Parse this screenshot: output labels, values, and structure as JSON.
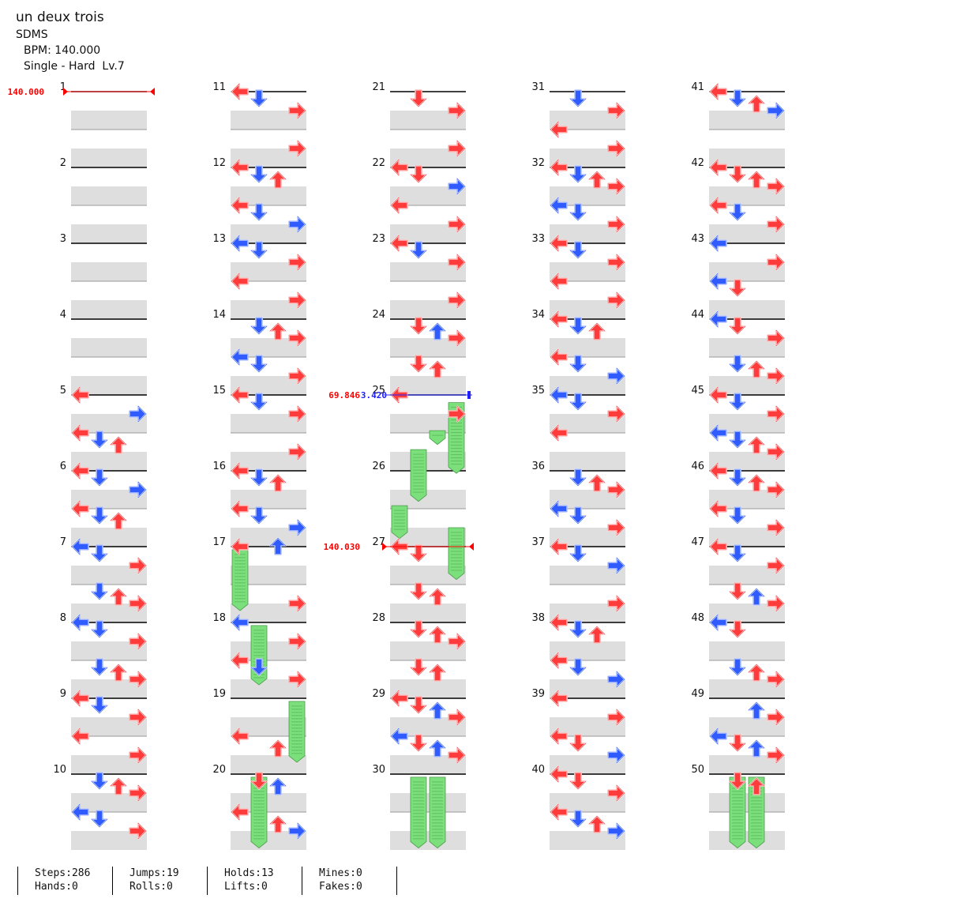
{
  "song": {
    "title": "un deux trois",
    "artist": "SDMS",
    "bpm_label": "BPM: 140.000",
    "difficulty_label": "Single - Hard  Lv.7"
  },
  "colors": {
    "red_arrow": "#ff3b3b",
    "blue_arrow": "#2f5bff",
    "hold": "#7be07b",
    "band": "#dedede",
    "bpm_red": "#ff0000",
    "bpm_blue": "#2020ff"
  },
  "measure_numbers": [
    "1",
    "2",
    "3",
    "4",
    "5",
    "6",
    "7",
    "8",
    "9",
    "10",
    "11",
    "12",
    "13",
    "14",
    "15",
    "16",
    "17",
    "18",
    "19",
    "20",
    "21",
    "22",
    "23",
    "24",
    "25",
    "26",
    "27",
    "28",
    "29",
    "30",
    "31",
    "32",
    "33",
    "34",
    "35",
    "36",
    "37",
    "38",
    "39",
    "40",
    "41",
    "42",
    "43",
    "44",
    "45",
    "46",
    "47",
    "48",
    "49",
    "50"
  ],
  "bpm_changes": [
    {
      "measure": 1,
      "label": "140.000",
      "color": "red"
    },
    {
      "measure": 25,
      "label": "69.846",
      "color": "red"
    },
    {
      "measure": 25,
      "label": "3.420",
      "color": "blue"
    },
    {
      "measure": 27,
      "label": "140.030",
      "color": "red"
    }
  ],
  "notes": [
    [
      5,
      0,
      0,
      "L",
      "r"
    ],
    [
      5,
      0,
      6,
      "R",
      "b"
    ],
    [
      5,
      1,
      0,
      "L",
      "r"
    ],
    [
      5,
      1,
      2,
      "D",
      "b"
    ],
    [
      5,
      1,
      4,
      "U",
      "r"
    ],
    [
      6,
      0,
      0,
      "L",
      "r"
    ],
    [
      6,
      0,
      2,
      "D",
      "b"
    ],
    [
      6,
      0,
      6,
      "R",
      "b"
    ],
    [
      6,
      0,
      0,
      "L",
      "r"
    ],
    [
      6,
      1,
      2,
      "D",
      "b"
    ],
    [
      6,
      1,
      4,
      "U",
      "r"
    ],
    [
      6,
      1,
      0,
      "L",
      "r"
    ],
    [
      7,
      0,
      2,
      "D",
      "b"
    ],
    [
      7,
      0,
      6,
      "R",
      "r"
    ],
    [
      7,
      0,
      0,
      "L",
      "b"
    ],
    [
      7,
      0,
      6,
      "R",
      "r"
    ],
    [
      7,
      1,
      2,
      "D",
      "b"
    ],
    [
      7,
      1,
      6,
      "R",
      "r"
    ],
    [
      7,
      1,
      4,
      "U",
      "r"
    ],
    [
      8,
      0,
      2,
      "D",
      "b"
    ],
    [
      8,
      0,
      6,
      "R",
      "r"
    ],
    [
      8,
      0,
      0,
      "L",
      "b"
    ],
    [
      8,
      0,
      6,
      "R",
      "r"
    ],
    [
      8,
      1,
      4,
      "U",
      "r"
    ],
    [
      8,
      1,
      2,
      "D",
      "b"
    ],
    [
      8,
      1,
      6,
      "R",
      "r"
    ],
    [
      9,
      0,
      0,
      "L",
      "r"
    ],
    [
      9,
      0,
      2,
      "D",
      "b"
    ],
    [
      9,
      0,
      6,
      "R",
      "r"
    ],
    [
      9,
      0,
      2,
      "D",
      "b"
    ],
    [
      9,
      1,
      6,
      "R",
      "r"
    ],
    [
      9,
      1,
      0,
      "L",
      "r"
    ],
    [
      10,
      0,
      2,
      "D",
      "r"
    ],
    [
      10,
      0,
      6,
      "R",
      "r"
    ],
    [
      10,
      0,
      4,
      "U",
      "r"
    ],
    [
      10,
      0,
      2,
      "D",
      "b"
    ],
    [
      10,
      1,
      6,
      "R",
      "r"
    ],
    [
      10,
      1,
      0,
      "L",
      "b"
    ],
    [
      10,
      1,
      6,
      "R",
      "r"
    ],
    [
      10,
      1,
      2,
      "D",
      "b"
    ],
    [
      10,
      1,
      6,
      "R",
      "r"
    ],
    [
      11,
      0,
      0,
      "L",
      "r"
    ],
    [
      11,
      0,
      6,
      "R",
      "r"
    ],
    [
      11,
      0,
      2,
      "D",
      "b"
    ],
    [
      11,
      0,
      0,
      "L",
      "r"
    ],
    [
      11,
      1,
      6,
      "R",
      "r"
    ],
    [
      12,
      0,
      0,
      "L",
      "r"
    ],
    [
      12,
      0,
      2,
      "D",
      "r"
    ],
    [
      12,
      0,
      4,
      "U",
      "r"
    ],
    [
      12,
      0,
      2,
      "D",
      "b"
    ],
    [
      12,
      1,
      6,
      "R",
      "b"
    ],
    [
      12,
      1,
      0,
      "L",
      "r"
    ],
    [
      12,
      1,
      2,
      "D",
      "b"
    ],
    [
      13,
      0,
      0,
      "L",
      "r"
    ],
    [
      13,
      0,
      6,
      "R",
      "r"
    ],
    [
      13,
      0,
      0,
      "L",
      "b"
    ],
    [
      13,
      0,
      2,
      "D",
      "b"
    ],
    [
      13,
      1,
      6,
      "R",
      "r"
    ],
    [
      13,
      1,
      0,
      "L",
      "r"
    ],
    [
      13,
      1,
      6,
      "R",
      "r"
    ],
    [
      14,
      0,
      2,
      "D",
      "r"
    ],
    [
      14,
      0,
      6,
      "R",
      "r"
    ],
    [
      14,
      0,
      4,
      "U",
      "r"
    ],
    [
      14,
      0,
      2,
      "D",
      "b"
    ],
    [
      14,
      1,
      6,
      "R",
      "r"
    ],
    [
      14,
      1,
      0,
      "L",
      "b"
    ],
    [
      14,
      1,
      6,
      "R",
      "r"
    ],
    [
      14,
      1,
      2,
      "D",
      "b"
    ],
    [
      14,
      1,
      6,
      "R",
      "r"
    ],
    [
      15,
      0,
      0,
      "L",
      "r"
    ],
    [
      15,
      0,
      6,
      "R",
      "r"
    ],
    [
      15,
      0,
      2,
      "D",
      "b"
    ],
    [
      15,
      1,
      6,
      "R",
      "r"
    ],
    [
      16,
      0,
      0,
      "L",
      "r"
    ],
    [
      16,
      0,
      2,
      "D",
      "r"
    ],
    [
      16,
      0,
      4,
      "U",
      "r"
    ],
    [
      16,
      0,
      2,
      "D",
      "b"
    ],
    [
      16,
      1,
      0,
      "L",
      "r"
    ],
    [
      16,
      1,
      6,
      "R",
      "b"
    ],
    [
      16,
      1,
      0,
      "L",
      "r"
    ],
    [
      16,
      1,
      2,
      "D",
      "b"
    ],
    [
      17,
      0,
      0,
      "L",
      "r"
    ],
    [
      17,
      0,
      0,
      "U",
      "b"
    ],
    [
      17,
      1,
      6,
      "R",
      "r"
    ],
    [
      18,
      0,
      0,
      "L",
      "b"
    ],
    [
      18,
      0,
      6,
      "R",
      "r"
    ],
    [
      18,
      1,
      0,
      "L",
      "r"
    ],
    [
      18,
      1,
      6,
      "R",
      "r"
    ],
    [
      18,
      1,
      0,
      "L",
      "r"
    ],
    [
      18,
      1,
      2,
      "D",
      "b"
    ],
    [
      19,
      1,
      4,
      "U",
      "r"
    ],
    [
      19,
      1,
      0,
      "L",
      "r"
    ],
    [
      20,
      0,
      4,
      "U",
      "b"
    ],
    [
      20,
      0,
      2,
      "D",
      "r"
    ],
    [
      20,
      1,
      4,
      "U",
      "r"
    ],
    [
      20,
      1,
      6,
      "R",
      "r"
    ],
    [
      20,
      1,
      0,
      "L",
      "r"
    ],
    [
      20,
      1,
      6,
      "R",
      "b"
    ],
    [
      21,
      0,
      6,
      "R",
      "r"
    ],
    [
      21,
      0,
      2,
      "D",
      "r"
    ],
    [
      21,
      1,
      6,
      "R",
      "r"
    ],
    [
      22,
      0,
      0,
      "L",
      "r"
    ],
    [
      22,
      0,
      6,
      "R",
      "b"
    ],
    [
      22,
      0,
      2,
      "D",
      "r"
    ],
    [
      22,
      1,
      6,
      "R",
      "r"
    ],
    [
      22,
      1,
      0,
      "L",
      "r"
    ],
    [
      22,
      1,
      6,
      "R",
      "r"
    ],
    [
      23,
      0,
      2,
      "D",
      "b"
    ],
    [
      23,
      0,
      6,
      "R",
      "r"
    ],
    [
      23,
      0,
      0,
      "L",
      "r"
    ],
    [
      23,
      1,
      6,
      "R",
      "r"
    ],
    [
      24,
      0,
      6,
      "R",
      "r"
    ],
    [
      24,
      0,
      4,
      "U",
      "b"
    ],
    [
      24,
      0,
      2,
      "D",
      "r"
    ],
    [
      24,
      1,
      4,
      "U",
      "r"
    ],
    [
      24,
      1,
      2,
      "D",
      "r"
    ],
    [
      25,
      0,
      0,
      "L",
      "b"
    ],
    [
      25,
      0,
      6,
      "R",
      "r"
    ],
    [
      25,
      0,
      0,
      "L",
      "r"
    ],
    [
      27,
      0,
      0,
      "L",
      "r"
    ],
    [
      27,
      0,
      2,
      "D",
      "r"
    ],
    [
      27,
      1,
      2,
      "D",
      "r"
    ],
    [
      27,
      1,
      4,
      "U",
      "r"
    ],
    [
      28,
      0,
      6,
      "R",
      "r"
    ],
    [
      28,
      0,
      2,
      "D",
      "r"
    ],
    [
      28,
      0,
      6,
      "R",
      "r"
    ],
    [
      28,
      0,
      4,
      "U",
      "r"
    ],
    [
      28,
      1,
      2,
      "D",
      "r"
    ],
    [
      28,
      1,
      4,
      "U",
      "r"
    ],
    [
      29,
      0,
      0,
      "L",
      "r"
    ],
    [
      29,
      0,
      6,
      "R",
      "r"
    ],
    [
      29,
      0,
      2,
      "D",
      "r"
    ],
    [
      29,
      0,
      4,
      "U",
      "b"
    ],
    [
      29,
      1,
      2,
      "D",
      "r"
    ],
    [
      29,
      1,
      4,
      "U",
      "b"
    ],
    [
      29,
      1,
      2,
      "D",
      "r"
    ],
    [
      29,
      1,
      0,
      "L",
      "b"
    ],
    [
      29,
      1,
      6,
      "R",
      "r"
    ],
    [
      29,
      1,
      2,
      "D",
      "r"
    ],
    [
      31,
      0,
      6,
      "R",
      "r"
    ],
    [
      31,
      0,
      2,
      "D",
      "b"
    ],
    [
      31,
      0,
      6,
      "R",
      "r"
    ],
    [
      31,
      1,
      0,
      "L",
      "r"
    ],
    [
      31,
      1,
      6,
      "R",
      "r"
    ],
    [
      32,
      0,
      0,
      "L",
      "r"
    ],
    [
      32,
      0,
      2,
      "D",
      "r"
    ],
    [
      32,
      0,
      6,
      "R",
      "r"
    ],
    [
      32,
      0,
      4,
      "U",
      "r"
    ],
    [
      32,
      0,
      2,
      "D",
      "b"
    ],
    [
      32,
      1,
      6,
      "R",
      "r"
    ],
    [
      32,
      1,
      0,
      "L",
      "b"
    ],
    [
      32,
      1,
      6,
      "R",
      "r"
    ],
    [
      32,
      1,
      2,
      "D",
      "b"
    ],
    [
      32,
      1,
      6,
      "R",
      "r"
    ],
    [
      33,
      0,
      6,
      "R",
      "b"
    ],
    [
      33,
      0,
      0,
      "L",
      "r"
    ],
    [
      33,
      0,
      6,
      "R",
      "r"
    ],
    [
      33,
      0,
      2,
      "D",
      "b"
    ],
    [
      33,
      1,
      0,
      "L",
      "r"
    ],
    [
      33,
      1,
      6,
      "R",
      "r"
    ],
    [
      34,
      0,
      0,
      "L",
      "r"
    ],
    [
      34,
      0,
      2,
      "D",
      "r"
    ],
    [
      34,
      0,
      4,
      "U",
      "r"
    ],
    [
      34,
      0,
      2,
      "D",
      "b"
    ],
    [
      34,
      1,
      0,
      "L",
      "r"
    ],
    [
      34,
      1,
      6,
      "R",
      "b"
    ],
    [
      34,
      1,
      0,
      "L",
      "r"
    ],
    [
      34,
      1,
      2,
      "D",
      "b"
    ],
    [
      34,
      1,
      0,
      "L",
      "r"
    ],
    [
      35,
      0,
      0,
      "L",
      "b"
    ],
    [
      35,
      0,
      6,
      "R",
      "r"
    ],
    [
      35,
      0,
      2,
      "D",
      "b"
    ],
    [
      35,
      1,
      0,
      "L",
      "r"
    ],
    [
      36,
      0,
      2,
      "D",
      "r"
    ],
    [
      36,
      0,
      6,
      "R",
      "r"
    ],
    [
      36,
      0,
      4,
      "U",
      "r"
    ],
    [
      36,
      0,
      2,
      "D",
      "b"
    ],
    [
      36,
      1,
      6,
      "R",
      "r"
    ],
    [
      36,
      1,
      0,
      "L",
      "b"
    ],
    [
      36,
      1,
      6,
      "R",
      "r"
    ],
    [
      36,
      1,
      2,
      "D",
      "b"
    ],
    [
      36,
      1,
      6,
      "R",
      "r"
    ],
    [
      37,
      0,
      6,
      "R",
      "b"
    ],
    [
      37,
      0,
      0,
      "L",
      "r"
    ],
    [
      37,
      0,
      2,
      "D",
      "b"
    ],
    [
      37,
      0,
      0,
      "L",
      "r"
    ],
    [
      37,
      1,
      6,
      "R",
      "r"
    ],
    [
      38,
      0,
      0,
      "L",
      "r"
    ],
    [
      38,
      0,
      2,
      "D",
      "r"
    ],
    [
      38,
      0,
      4,
      "U",
      "r"
    ],
    [
      38,
      0,
      2,
      "D",
      "b"
    ],
    [
      38,
      1,
      0,
      "L",
      "r"
    ],
    [
      38,
      1,
      6,
      "R",
      "b"
    ],
    [
      38,
      1,
      0,
      "L",
      "r"
    ],
    [
      38,
      1,
      2,
      "D",
      "b"
    ],
    [
      38,
      1,
      0,
      "L",
      "r"
    ],
    [
      39,
      0,
      0,
      "L",
      "r"
    ],
    [
      39,
      0,
      6,
      "R",
      "r"
    ],
    [
      39,
      0,
      0,
      "L",
      "r"
    ],
    [
      39,
      1,
      6,
      "R",
      "b"
    ],
    [
      39,
      1,
      2,
      "D",
      "r"
    ],
    [
      39,
      1,
      6,
      "R",
      "b"
    ],
    [
      39,
      1,
      0,
      "L",
      "r"
    ],
    [
      39,
      1,
      2,
      "D",
      "r"
    ],
    [
      40,
      0,
      0,
      "L",
      "r"
    ],
    [
      40,
      0,
      2,
      "D",
      "r"
    ],
    [
      40,
      0,
      6,
      "R",
      "r"
    ],
    [
      40,
      0,
      2,
      "D",
      "r"
    ],
    [
      40,
      1,
      6,
      "R",
      "b"
    ],
    [
      40,
      1,
      0,
      "L",
      "r"
    ],
    [
      40,
      1,
      2,
      "D",
      "b"
    ],
    [
      40,
      1,
      4,
      "U",
      "r"
    ],
    [
      41,
      0,
      2,
      "D",
      "r"
    ],
    [
      41,
      0,
      6,
      "R",
      "r"
    ],
    [
      41,
      0,
      0,
      "L",
      "r"
    ],
    [
      41,
      0,
      2,
      "D",
      "b"
    ],
    [
      41,
      0,
      4,
      "U",
      "r"
    ],
    [
      41,
      0,
      6,
      "R",
      "b"
    ],
    [
      42,
      0,
      0,
      "L",
      "r"
    ],
    [
      42,
      0,
      2,
      "D",
      "r"
    ],
    [
      42,
      0,
      4,
      "U",
      "r"
    ],
    [
      42,
      0,
      6,
      "R",
      "r"
    ],
    [
      42,
      1,
      2,
      "D",
      "b"
    ],
    [
      42,
      1,
      0,
      "L",
      "r"
    ],
    [
      42,
      1,
      2,
      "D",
      "b"
    ],
    [
      42,
      1,
      6,
      "R",
      "r"
    ],
    [
      43,
      0,
      6,
      "R",
      "r"
    ],
    [
      43,
      0,
      0,
      "L",
      "b"
    ],
    [
      43,
      0,
      6,
      "R",
      "r"
    ],
    [
      43,
      1,
      0,
      "L",
      "b"
    ],
    [
      43,
      1,
      2,
      "D",
      "r"
    ],
    [
      43,
      1,
      0,
      "L",
      "b"
    ],
    [
      43,
      1,
      2,
      "D",
      "r"
    ],
    [
      44,
      0,
      6,
      "R",
      "r"
    ],
    [
      44,
      0,
      0,
      "L",
      "b"
    ],
    [
      44,
      0,
      2,
      "D",
      "r"
    ],
    [
      44,
      0,
      0,
      "L",
      "b"
    ],
    [
      44,
      1,
      6,
      "R",
      "r"
    ],
    [
      44,
      1,
      2,
      "D",
      "b"
    ],
    [
      44,
      1,
      4,
      "U",
      "r"
    ],
    [
      45,
      0,
      0,
      "L",
      "r"
    ],
    [
      45,
      0,
      6,
      "R",
      "r"
    ],
    [
      45,
      0,
      2,
      "D",
      "b"
    ],
    [
      45,
      1,
      6,
      "R",
      "r"
    ],
    [
      45,
      1,
      2,
      "D",
      "b"
    ],
    [
      45,
      1,
      4,
      "U",
      "r"
    ],
    [
      45,
      1,
      0,
      "L",
      "b"
    ],
    [
      46,
      0,
      6,
      "R",
      "r"
    ],
    [
      46,
      0,
      4,
      "U",
      "r"
    ],
    [
      46,
      0,
      2,
      "D",
      "b"
    ],
    [
      46,
      0,
      0,
      "L",
      "r"
    ],
    [
      46,
      0,
      2,
      "D",
      "b"
    ],
    [
      46,
      1,
      6,
      "R",
      "r"
    ],
    [
      46,
      1,
      2,
      "D",
      "b"
    ],
    [
      46,
      1,
      0,
      "L",
      "r"
    ],
    [
      47,
      0,
      6,
      "R",
      "r"
    ],
    [
      47,
      0,
      0,
      "L",
      "r"
    ],
    [
      47,
      0,
      2,
      "D",
      "b"
    ],
    [
      47,
      1,
      4,
      "U",
      "r"
    ],
    [
      47,
      1,
      6,
      "R",
      "b"
    ],
    [
      47,
      1,
      6,
      "R",
      "r"
    ],
    [
      47,
      1,
      4,
      "U",
      "b"
    ],
    [
      47,
      1,
      2,
      "D",
      "r"
    ],
    [
      48,
      0,
      0,
      "L",
      "b"
    ],
    [
      48,
      0,
      2,
      "D",
      "b"
    ],
    [
      48,
      0,
      2,
      "D",
      "r"
    ],
    [
      48,
      0,
      0,
      "L",
      "b"
    ],
    [
      48,
      1,
      4,
      "U",
      "r"
    ],
    [
      48,
      1,
      2,
      "D",
      "b"
    ],
    [
      48,
      1,
      6,
      "R",
      "r"
    ],
    [
      49,
      0,
      4,
      "U",
      "b"
    ],
    [
      49,
      0,
      6,
      "R",
      "r"
    ],
    [
      49,
      0,
      6,
      "R",
      "b"
    ],
    [
      49,
      0,
      6,
      "R",
      "r"
    ],
    [
      49,
      1,
      4,
      "U",
      "b"
    ],
    [
      49,
      1,
      2,
      "D",
      "r"
    ],
    [
      49,
      1,
      0,
      "L",
      "b"
    ],
    [
      49,
      1,
      6,
      "R",
      "r"
    ],
    [
      50,
      0,
      2,
      "D",
      "r"
    ],
    [
      50,
      0,
      4,
      "U",
      "r"
    ]
  ],
  "holds": [
    [
      17,
      0.04,
      0.72,
      0,
      "L"
    ],
    [
      18,
      0.04,
      0.7,
      1,
      "D"
    ],
    [
      19,
      0.04,
      0.72,
      3,
      "R"
    ],
    [
      20,
      0.04,
      0.85,
      1,
      "D"
    ],
    [
      25,
      0.1,
      0.85,
      3,
      "R"
    ],
    [
      25,
      0.47,
      0.1,
      2,
      "U"
    ],
    [
      25,
      0.72,
      0.6,
      1,
      "D"
    ],
    [
      26,
      0.46,
      0.35,
      0,
      "L"
    ],
    [
      26,
      0.75,
      0.6,
      3,
      "R"
    ],
    [
      30,
      0.04,
      0.85,
      1,
      "D"
    ],
    [
      30,
      0.04,
      0.85,
      2,
      "U"
    ],
    [
      50,
      0.04,
      0.85,
      1,
      "D"
    ],
    [
      50,
      0.04,
      0.85,
      2,
      "U"
    ]
  ],
  "stats": {
    "steps": "Steps:286",
    "hands": "Hands:0",
    "jumps": "Jumps:19",
    "rolls": "Rolls:0",
    "holds": "Holds:13",
    "lifts": "Lifts:0",
    "mines": "Mines:0",
    "fakes": "Fakes:0"
  }
}
